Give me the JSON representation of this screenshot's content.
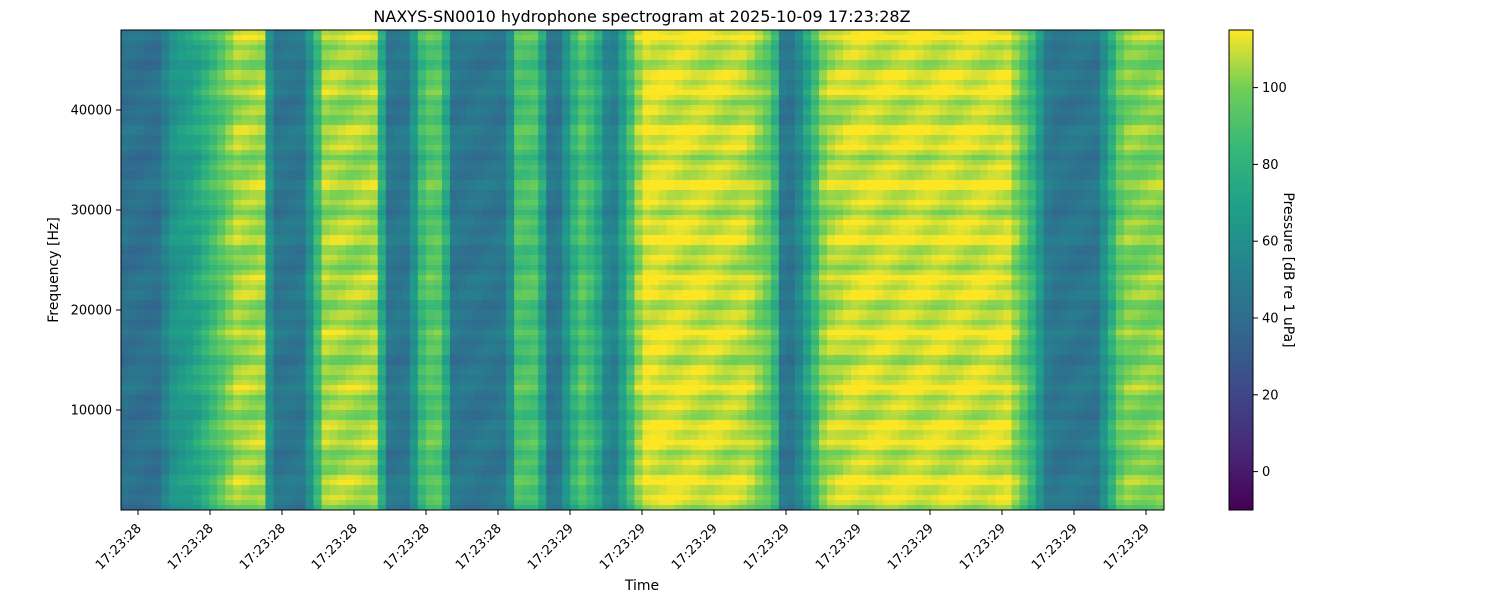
{
  "chart_data": {
    "type": "heatmap",
    "title": "NAXYS-SN0010 hydrophone spectrogram at 2025-10-09 17:23:28Z",
    "xlabel": "Time",
    "ylabel": "Frequency [Hz]",
    "colorbar_label": "Pressure [dB re 1 uPa]",
    "colormap": "viridis",
    "ylim": [
      0,
      48000
    ],
    "yticks": [
      10000,
      20000,
      30000,
      40000
    ],
    "xticks": [
      "17:23:28",
      "17:23:28",
      "17:23:28",
      "17:23:28",
      "17:23:28",
      "17:23:28",
      "17:23:29",
      "17:23:29",
      "17:23:29",
      "17:23:29",
      "17:23:29",
      "17:23:29",
      "17:23:29",
      "17:23:29",
      "17:23:29"
    ],
    "clim": [
      -10,
      115
    ],
    "colorbar_ticks": [
      0,
      20,
      40,
      60,
      80,
      100
    ],
    "band_profile": {
      "description_x": "fraction of time axis",
      "x": [
        0.0,
        0.035,
        0.05,
        0.07,
        0.11,
        0.135,
        0.145,
        0.175,
        0.195,
        0.245,
        0.255,
        0.275,
        0.29,
        0.3,
        0.31,
        0.315,
        0.37,
        0.38,
        0.4,
        0.41,
        0.42,
        0.44,
        0.455,
        0.47,
        0.5,
        0.6,
        0.625,
        0.635,
        0.645,
        0.675,
        0.7,
        0.85,
        0.87,
        0.89,
        0.935,
        0.96,
        1.0
      ],
      "level_db": [
        42,
        42,
        62,
        70,
        105,
        105,
        45,
        45,
        105,
        105,
        45,
        45,
        90,
        95,
        90,
        45,
        45,
        90,
        90,
        45,
        45,
        93,
        80,
        45,
        112,
        108,
        92,
        45,
        45,
        105,
        110,
        110,
        88,
        45,
        45,
        100,
        102
      ]
    }
  }
}
